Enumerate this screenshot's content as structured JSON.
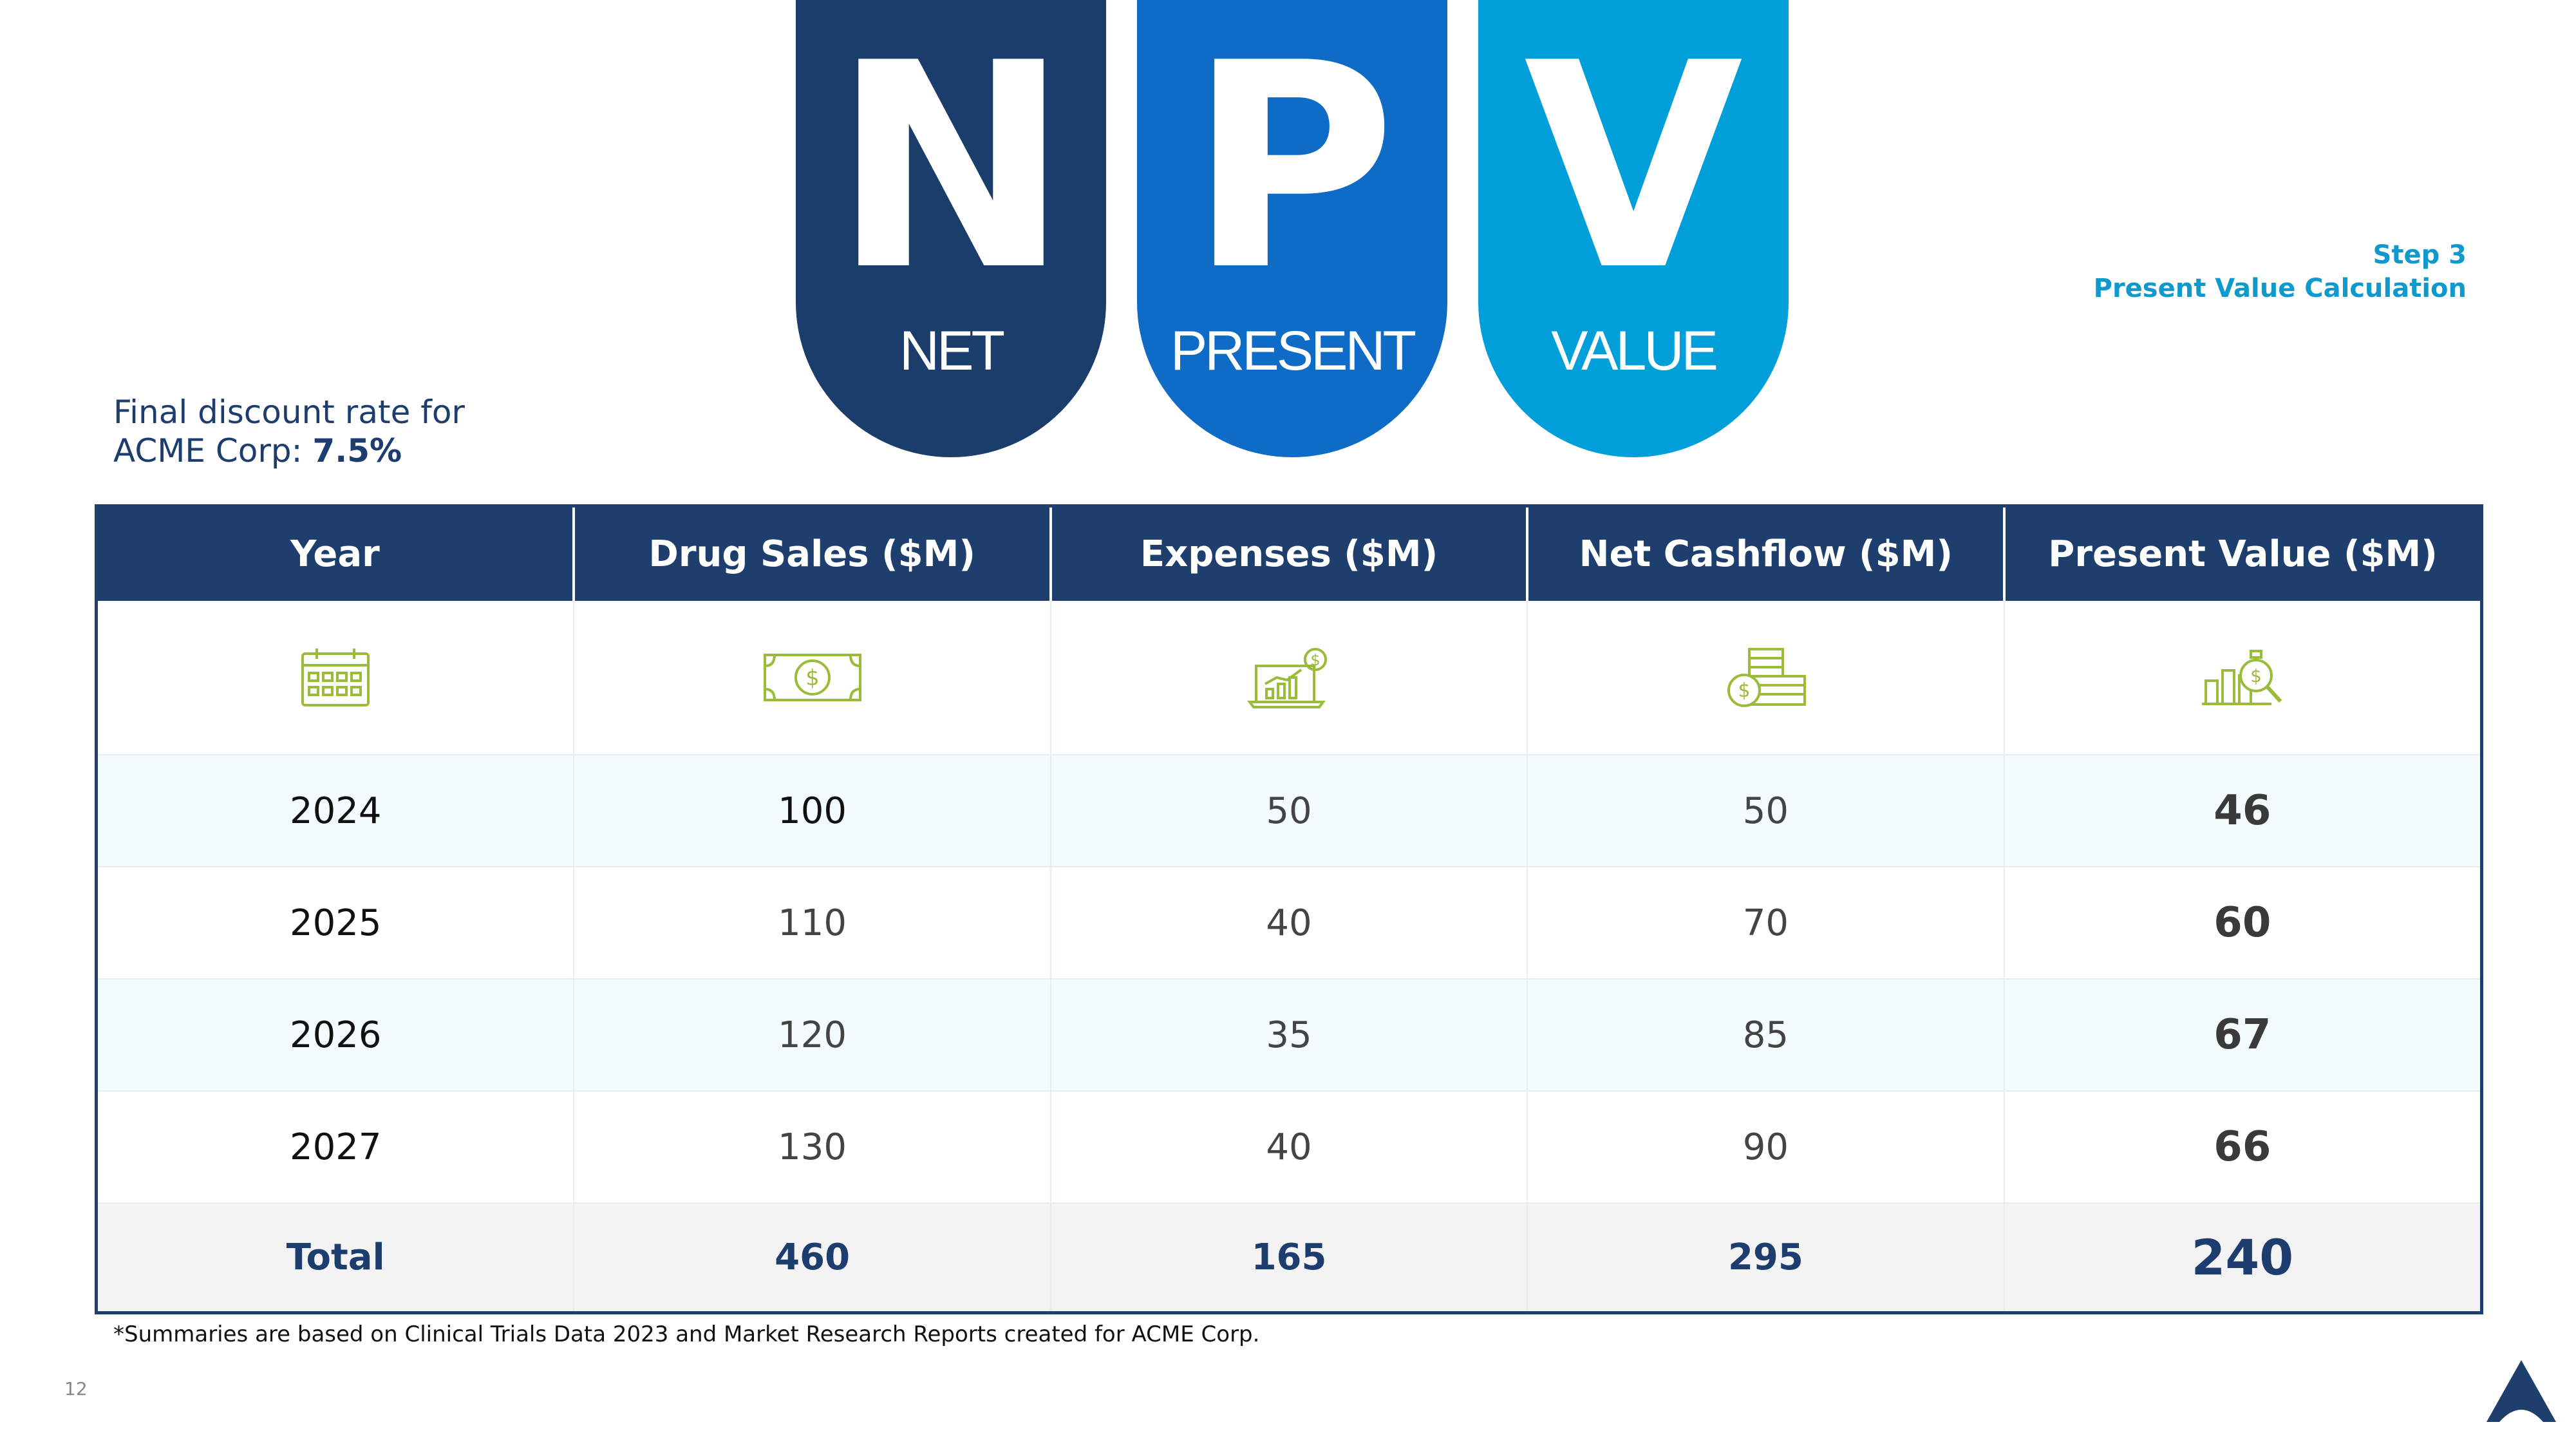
{
  "banners": [
    {
      "letter": "N",
      "word": "NET",
      "color": "#1a3d6b"
    },
    {
      "letter": "P",
      "word": "PRESENT",
      "color": "#0e6bc6"
    },
    {
      "letter": "V",
      "word": "VALUE",
      "color": "#019fda"
    }
  ],
  "step": {
    "line1": "Step 3",
    "line2": "Present Value Calculation"
  },
  "rate": {
    "line1": "Final discount rate for",
    "line2_prefix": "ACME Corp: ",
    "value": "7.5%"
  },
  "table": {
    "headers": [
      "Year",
      "Drug Sales ($M)",
      "Expenses ($M)",
      "Net Cashflow ($M)",
      "Present Value ($M)"
    ],
    "header_icons": [
      "calendar-icon",
      "banknote-icon",
      "laptop-chart-icon",
      "coins-stack-icon",
      "chart-magnifier-icon"
    ],
    "rows": [
      [
        "2024",
        "100",
        "50",
        "50",
        "46"
      ],
      [
        "2025",
        "110",
        "40",
        "70",
        "60"
      ],
      [
        "2026",
        "120",
        "35",
        "85",
        "67"
      ],
      [
        "2027",
        "130",
        "40",
        "90",
        "66"
      ]
    ],
    "total": [
      "Total",
      "460",
      "165",
      "295",
      "240"
    ]
  },
  "footnote": "*Summaries are based on Clinical Trials Data 2023 and Market Research Reports created for ACME Corp.",
  "page_number": "12",
  "colors": {
    "navy": "#1e3f6d",
    "accent": "#1099cc",
    "icon": "#9bbb3a"
  }
}
